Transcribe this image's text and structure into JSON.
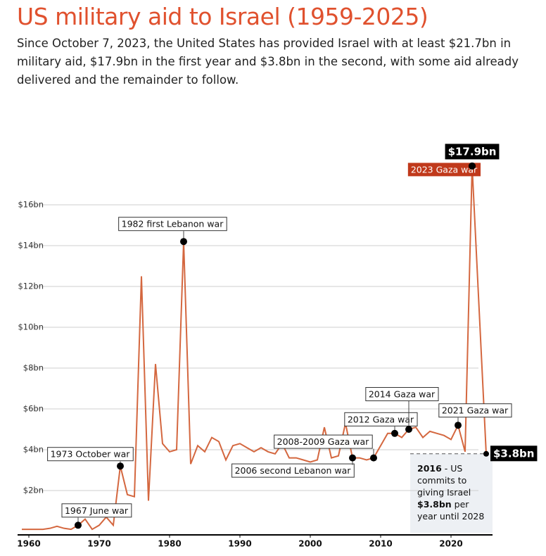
{
  "chart_data": {
    "type": "line",
    "title": "US military aid to Israel (1959-2025)",
    "subtitle": "Since October 7, 2023, the United States has provided Israel with at least $21.7bn in military aid, $17.9bn in the first year and $3.8bn in the second, with some aid already delivered and the remainder to follow.",
    "x": [
      1959,
      1960,
      1961,
      1962,
      1963,
      1964,
      1965,
      1966,
      1967,
      1968,
      1969,
      1970,
      1971,
      1972,
      1973,
      1974,
      1975,
      1976,
      1977,
      1978,
      1979,
      1980,
      1981,
      1982,
      1983,
      1984,
      1985,
      1986,
      1987,
      1988,
      1989,
      1990,
      1991,
      1992,
      1993,
      1994,
      1995,
      1996,
      1997,
      1998,
      1999,
      2000,
      2001,
      2002,
      2003,
      2004,
      2005,
      2006,
      2007,
      2008,
      2009,
      2010,
      2011,
      2012,
      2013,
      2014,
      2015,
      2016,
      2017,
      2018,
      2019,
      2020,
      2021,
      2022,
      2023,
      2025
    ],
    "series": [
      {
        "name": "US military aid",
        "color": "#d4673f",
        "values": [
          0.1,
          0.1,
          0.1,
          0.1,
          0.15,
          0.25,
          0.15,
          0.1,
          0.3,
          0.6,
          0.1,
          0.3,
          0.7,
          0.3,
          3.2,
          1.8,
          1.7,
          12.5,
          1.5,
          8.2,
          4.3,
          3.9,
          4.0,
          14.2,
          3.3,
          4.2,
          3.9,
          4.6,
          4.4,
          3.5,
          4.2,
          4.3,
          4.1,
          3.9,
          4.1,
          3.9,
          3.8,
          4.3,
          3.6,
          3.6,
          3.5,
          3.4,
          3.5,
          5.1,
          3.6,
          3.7,
          5.3,
          3.6,
          3.6,
          3.5,
          3.6,
          4.2,
          4.8,
          4.8,
          4.6,
          5.0,
          5.1,
          4.6,
          4.9,
          4.8,
          4.7,
          4.5,
          5.2,
          3.9,
          17.9,
          3.8
        ],
        "value_labels": [
          null,
          null,
          null,
          null,
          null,
          null,
          null,
          null,
          null,
          null,
          null,
          null,
          null,
          null,
          null,
          null,
          null,
          null,
          null,
          null,
          null,
          null,
          null,
          null,
          null,
          null,
          null,
          null,
          null,
          null,
          null,
          null,
          null,
          null,
          null,
          null,
          null,
          null,
          null,
          null,
          null,
          null,
          null,
          null,
          null,
          null,
          null,
          null,
          null,
          null,
          null,
          null,
          null,
          null,
          null,
          null,
          null,
          null,
          null,
          null,
          null,
          null,
          null,
          null,
          "$17.9bn",
          "$3.8bn"
        ]
      }
    ],
    "xlim": [
      1959,
      2025
    ],
    "ylim": [
      0,
      18
    ],
    "xticks": [
      1960,
      1970,
      1980,
      1990,
      2000,
      2010,
      2020
    ],
    "yticks": [
      {
        "value": 2,
        "label": "$2bn"
      },
      {
        "value": 4,
        "label": "$4bn"
      },
      {
        "value": 6,
        "label": "$6bn"
      },
      {
        "value": 8,
        "label": "$8bn"
      },
      {
        "value": 10,
        "label": "$10bn"
      },
      {
        "value": 12,
        "label": "$12bn"
      },
      {
        "value": 14,
        "label": "$14bn"
      },
      {
        "value": 16,
        "label": "$16bn"
      }
    ],
    "grid": true,
    "annotations": [
      {
        "text": "1967 June war",
        "x": 1967
      },
      {
        "text": "1973 October war",
        "x": 1973
      },
      {
        "text": "1982 first Lebanon war",
        "x": 1982
      },
      {
        "text": "2006 second Lebanon war",
        "x": 2006
      },
      {
        "text": "2008-2009 Gaza war",
        "x": 2009
      },
      {
        "text": "2012 Gaza war",
        "x": 2012
      },
      {
        "text": "2014 Gaza war",
        "x": 2014
      },
      {
        "text": "2021 Gaza war",
        "x": 2021
      },
      {
        "text": "2023 Gaza war",
        "x": 2023,
        "color": "#c0391b"
      }
    ],
    "note": {
      "year": "2016",
      "text1": " - US commits to giving Israel ",
      "amount": "$3.8bn",
      "text2": " per year until 2028"
    }
  }
}
